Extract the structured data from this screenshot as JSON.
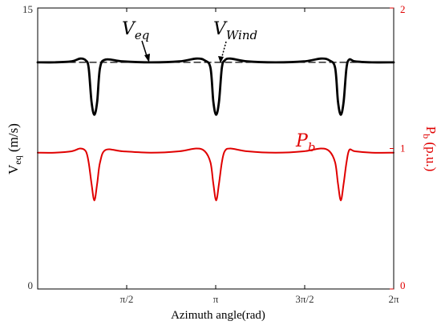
{
  "chart_data": {
    "type": "line",
    "x": [
      0,
      0.3,
      0.6,
      0.75,
      0.85,
      0.9,
      0.95,
      1.0,
      1.05,
      1.1,
      1.2,
      1.5,
      2.0,
      2.5,
      2.8,
      2.95,
      3.05,
      3.1,
      3.15,
      3.2,
      3.25,
      3.3,
      3.4,
      3.7,
      4.2,
      4.7,
      5.0,
      5.15,
      5.25,
      5.3,
      5.35,
      5.4,
      5.45,
      5.5,
      5.6,
      5.9,
      6.2832
    ],
    "x_tick_positions": [
      1.5708,
      3.1416,
      4.7124,
      6.2832
    ],
    "x_tick_labels": [
      "π/2",
      "π",
      "3π/2",
      "2π"
    ],
    "xlim": [
      0,
      6.2832
    ],
    "xlabel": "Azimuth angle(rad)",
    "left_axis": {
      "label_main": "V",
      "label_sub": "eq",
      "label_unit": " (m/s)",
      "ylim": [
        0,
        15
      ],
      "ticks": [
        0,
        15
      ],
      "tick_labels": [
        "0",
        "15"
      ],
      "color": "#000000"
    },
    "right_axis": {
      "label_main": "P",
      "label_sub": "b",
      "label_unit": " (p.u.)",
      "ylim": [
        0,
        2
      ],
      "ticks": [
        0,
        1,
        2
      ],
      "tick_labels": [
        "0",
        "1",
        "2"
      ],
      "color": "#e00000"
    },
    "series": [
      {
        "axis": "left",
        "color": "#000000",
        "style": "solid",
        "values": [
          12.1,
          12.1,
          12.15,
          12.3,
          12.2,
          11.8,
          10.0,
          9.3,
          10.0,
          11.8,
          12.25,
          12.15,
          12.1,
          12.15,
          12.3,
          12.2,
          11.8,
          10.0,
          9.3,
          10.0,
          11.8,
          12.2,
          12.3,
          12.15,
          12.1,
          12.15,
          12.3,
          12.2,
          11.8,
          10.0,
          9.3,
          10.0,
          11.8,
          12.25,
          12.15,
          12.1,
          12.1
        ]
      },
      {
        "axis": "left",
        "color": "#000000",
        "style": "dashed",
        "values": [
          12.1,
          12.1,
          12.1,
          12.1,
          12.1,
          12.1,
          12.1,
          12.1,
          12.1,
          12.1,
          12.1,
          12.1,
          12.1,
          12.1,
          12.1,
          12.1,
          12.1,
          12.1,
          12.1,
          12.1,
          12.1,
          12.1,
          12.1,
          12.1,
          12.1,
          12.1,
          12.1,
          12.1,
          12.1,
          12.1,
          12.1,
          12.1,
          12.1,
          12.1,
          12.1,
          12.1,
          12.1
        ]
      },
      {
        "axis": "right",
        "color": "#e00000",
        "style": "solid",
        "values": [
          0.97,
          0.97,
          0.98,
          1.0,
          0.98,
          0.9,
          0.75,
          0.63,
          0.75,
          0.9,
          0.99,
          0.98,
          0.97,
          0.98,
          1.0,
          0.98,
          0.9,
          0.75,
          0.63,
          0.75,
          0.9,
          0.98,
          1.0,
          0.98,
          0.97,
          0.98,
          1.0,
          0.98,
          0.9,
          0.75,
          0.63,
          0.75,
          0.9,
          0.99,
          0.98,
          0.97,
          0.97
        ]
      }
    ],
    "annotations": [
      {
        "main": "V",
        "sub": "eq",
        "color": "#000000"
      },
      {
        "main": "V",
        "sub": "Wind",
        "color": "#000000"
      },
      {
        "main": "P",
        "sub": "b",
        "color": "#e00000"
      }
    ]
  }
}
